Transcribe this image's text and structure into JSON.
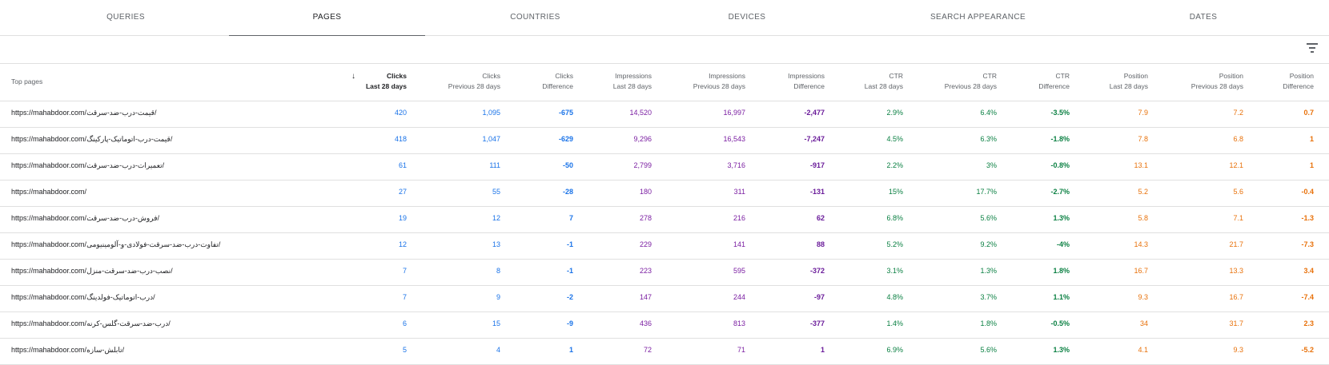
{
  "tabs": [
    {
      "label": "QUERIES"
    },
    {
      "label": "PAGES"
    },
    {
      "label": "COUNTRIES"
    },
    {
      "label": "DEVICES"
    },
    {
      "label": "SEARCH APPEARANCE"
    },
    {
      "label": "DATES"
    }
  ],
  "active_tab": "PAGES",
  "table": {
    "first_col_header": "Top pages",
    "headers": [
      {
        "l1": "Clicks",
        "l2": "Last 28 days"
      },
      {
        "l1": "Clicks",
        "l2": "Previous 28 days"
      },
      {
        "l1": "Clicks",
        "l2": "Difference"
      },
      {
        "l1": "Impressions",
        "l2": "Last 28 days"
      },
      {
        "l1": "Impressions",
        "l2": "Previous 28 days"
      },
      {
        "l1": "Impressions",
        "l2": "Difference"
      },
      {
        "l1": "CTR",
        "l2": "Last 28 days"
      },
      {
        "l1": "CTR",
        "l2": "Previous 28 days"
      },
      {
        "l1": "CTR",
        "l2": "Difference"
      },
      {
        "l1": "Position",
        "l2": "Last 28 days"
      },
      {
        "l1": "Position",
        "l2": "Previous 28 days"
      },
      {
        "l1": "Position",
        "l2": "Difference"
      }
    ],
    "rows": [
      {
        "url": "https://mahabdoor.com/قیمت-درب-ضد-سرقت/",
        "values": [
          "420",
          "1,095",
          "-675",
          "14,520",
          "16,997",
          "-2,477",
          "2.9%",
          "6.4%",
          "-3.5%",
          "7.9",
          "7.2",
          "0.7"
        ]
      },
      {
        "url": "https://mahabdoor.com/قیمت-درب-اتوماتیک-پارکینگ/",
        "values": [
          "418",
          "1,047",
          "-629",
          "9,296",
          "16,543",
          "-7,247",
          "4.5%",
          "6.3%",
          "-1.8%",
          "7.8",
          "6.8",
          "1"
        ]
      },
      {
        "url": "https://mahabdoor.com/تعمیرات-درب-ضد-سرقت/",
        "values": [
          "61",
          "111",
          "-50",
          "2,799",
          "3,716",
          "-917",
          "2.2%",
          "3%",
          "-0.8%",
          "13.1",
          "12.1",
          "1"
        ]
      },
      {
        "url": "https://mahabdoor.com/",
        "values": [
          "27",
          "55",
          "-28",
          "180",
          "311",
          "-131",
          "15%",
          "17.7%",
          "-2.7%",
          "5.2",
          "5.6",
          "-0.4"
        ]
      },
      {
        "url": "https://mahabdoor.com/فروش-درب-ضد-سرقت/",
        "values": [
          "19",
          "12",
          "7",
          "278",
          "216",
          "62",
          "6.8%",
          "5.6%",
          "1.3%",
          "5.8",
          "7.1",
          "-1.3"
        ]
      },
      {
        "url": "https://mahabdoor.com/تفاوت-درب-ضد-سرقت-فولادی-و-آلومینیومی/",
        "values": [
          "12",
          "13",
          "-1",
          "229",
          "141",
          "88",
          "5.2%",
          "9.2%",
          "-4%",
          "14.3",
          "21.7",
          "-7.3"
        ]
      },
      {
        "url": "https://mahabdoor.com/نصب-درب-ضد-سرقت-منزل/",
        "values": [
          "7",
          "8",
          "-1",
          "223",
          "595",
          "-372",
          "3.1%",
          "1.3%",
          "1.8%",
          "16.7",
          "13.3",
          "3.4"
        ]
      },
      {
        "url": "https://mahabdoor.com/درب-اتوماتیک-فولدینگ/",
        "values": [
          "7",
          "9",
          "-2",
          "147",
          "244",
          "-97",
          "4.8%",
          "3.7%",
          "1.1%",
          "9.3",
          "16.7",
          "-7.4"
        ]
      },
      {
        "url": "https://mahabdoor.com/درب-ضد-سرقت-گلس-کرنه/",
        "values": [
          "6",
          "15",
          "-9",
          "436",
          "813",
          "-377",
          "1.4%",
          "1.8%",
          "-0.5%",
          "34",
          "31.7",
          "2.3"
        ]
      },
      {
        "url": "https://mahabdoor.com/تابلش-سازه/",
        "values": [
          "5",
          "4",
          "1",
          "72",
          "71",
          "1",
          "6.9%",
          "5.6%",
          "1.3%",
          "4.1",
          "9.3",
          "-5.2"
        ]
      }
    ]
  },
  "colors": {
    "clicks": "#1a73e8",
    "impressions": "#7b1fa2",
    "ctr": "#0b8043",
    "position": "#e8710a"
  }
}
